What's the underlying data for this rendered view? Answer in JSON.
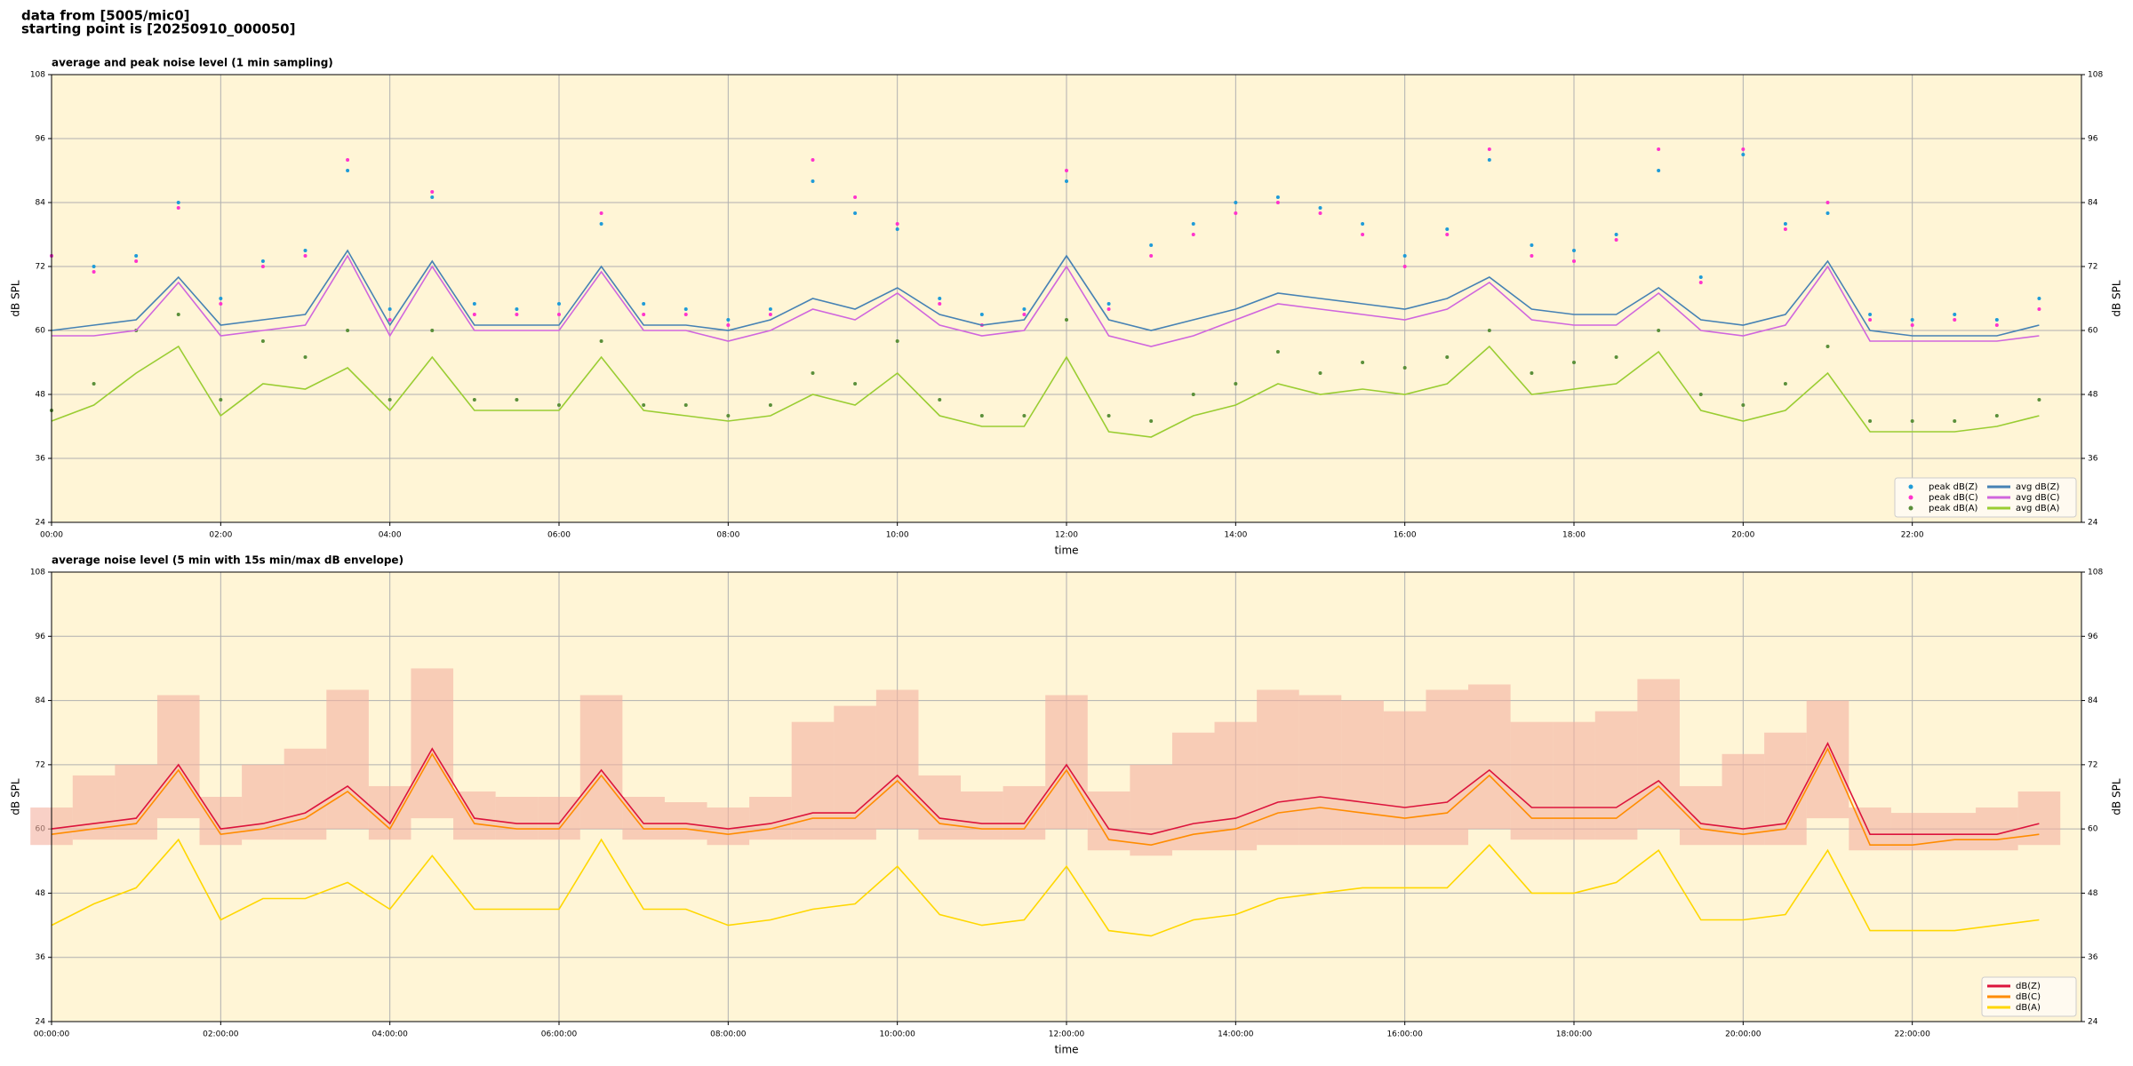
{
  "header": {
    "line1": "data from [5005/mic0]",
    "line2": "starting point is [20250910_000050]"
  },
  "chart_data": [
    {
      "type": "line",
      "title": "average and peak noise level (1 min sampling)",
      "xlabel": "time",
      "ylabel": "dB SPL",
      "x": [
        0,
        0.5,
        1,
        1.5,
        2,
        2.5,
        3,
        3.5,
        4,
        4.5,
        5,
        5.5,
        6,
        6.5,
        7,
        7.5,
        8,
        8.5,
        9,
        9.5,
        10,
        10.5,
        11,
        11.5,
        12,
        12.5,
        13,
        13.5,
        14,
        14.5,
        15,
        15.5,
        16,
        16.5,
        17,
        17.5,
        18,
        18.5,
        19,
        19.5,
        20,
        20.5,
        21,
        21.5,
        22,
        22.5,
        23,
        23.5
      ],
      "xlim": [
        0,
        24
      ],
      "xticks": [
        {
          "value": 0,
          "label": "00:00"
        },
        {
          "value": 2,
          "label": "02:00"
        },
        {
          "value": 4,
          "label": "04:00"
        },
        {
          "value": 6,
          "label": "06:00"
        },
        {
          "value": 8,
          "label": "08:00"
        },
        {
          "value": 10,
          "label": "10:00"
        },
        {
          "value": 12,
          "label": "12:00"
        },
        {
          "value": 14,
          "label": "14:00"
        },
        {
          "value": 16,
          "label": "16:00"
        },
        {
          "value": 18,
          "label": "18:00"
        },
        {
          "value": 20,
          "label": "20:00"
        },
        {
          "value": 22,
          "label": "22:00"
        }
      ],
      "ylim": [
        24,
        108
      ],
      "yticks": [
        24,
        36,
        48,
        60,
        72,
        84,
        96,
        108
      ],
      "grid": true,
      "legend": "lower right",
      "legend_columns": 2,
      "series": [
        {
          "name": "peak dB(Z)",
          "style": "points",
          "color": "#1f9bd8",
          "values": [
            74,
            72,
            74,
            84,
            66,
            73,
            75,
            90,
            64,
            85,
            65,
            64,
            65,
            80,
            65,
            64,
            62,
            64,
            88,
            82,
            79,
            66,
            63,
            64,
            88,
            65,
            76,
            80,
            84,
            85,
            83,
            80,
            74,
            79,
            92,
            76,
            75,
            78,
            90,
            70,
            93,
            80,
            82,
            63,
            62,
            63,
            62,
            66
          ]
        },
        {
          "name": "peak dB(C)",
          "style": "points",
          "color": "#ff33cc",
          "values": [
            74,
            71,
            73,
            83,
            65,
            72,
            74,
            92,
            62,
            86,
            63,
            63,
            63,
            82,
            63,
            63,
            61,
            63,
            92,
            85,
            80,
            65,
            61,
            63,
            90,
            64,
            74,
            78,
            82,
            84,
            82,
            78,
            72,
            78,
            94,
            74,
            73,
            77,
            94,
            69,
            94,
            79,
            84,
            62,
            61,
            62,
            61,
            64
          ]
        },
        {
          "name": "peak dB(A)",
          "style": "points",
          "color": "#5a8f3a",
          "values": [
            45,
            50,
            60,
            63,
            47,
            58,
            55,
            60,
            47,
            60,
            47,
            47,
            46,
            58,
            46,
            46,
            44,
            46,
            52,
            50,
            58,
            47,
            44,
            44,
            62,
            44,
            43,
            48,
            50,
            56,
            52,
            54,
            53,
            55,
            60,
            52,
            54,
            55,
            60,
            48,
            46,
            50,
            57,
            43,
            43,
            43,
            44,
            47
          ]
        },
        {
          "name": "avg dB(Z)",
          "style": "line",
          "color": "#4682b4",
          "values": [
            60,
            61,
            62,
            70,
            61,
            62,
            63,
            75,
            61,
            73,
            61,
            61,
            61,
            72,
            61,
            61,
            60,
            62,
            66,
            64,
            68,
            63,
            61,
            62,
            74,
            62,
            60,
            62,
            64,
            67,
            66,
            65,
            64,
            66,
            70,
            64,
            63,
            63,
            68,
            62,
            61,
            63,
            73,
            60,
            59,
            59,
            59,
            61
          ]
        },
        {
          "name": "avg dB(C)",
          "style": "line",
          "color": "#d066dd",
          "values": [
            59,
            59,
            60,
            69,
            59,
            60,
            61,
            74,
            59,
            72,
            60,
            60,
            60,
            71,
            60,
            60,
            58,
            60,
            64,
            62,
            67,
            61,
            59,
            60,
            72,
            59,
            57,
            59,
            62,
            65,
            64,
            63,
            62,
            64,
            69,
            62,
            61,
            61,
            67,
            60,
            59,
            61,
            72,
            58,
            58,
            58,
            58,
            59
          ]
        },
        {
          "name": "avg dB(A)",
          "style": "line",
          "color": "#9acd32",
          "values": [
            43,
            46,
            52,
            57,
            44,
            50,
            49,
            53,
            45,
            55,
            45,
            45,
            45,
            55,
            45,
            44,
            43,
            44,
            48,
            46,
            52,
            44,
            42,
            42,
            55,
            41,
            40,
            44,
            46,
            50,
            48,
            49,
            48,
            50,
            57,
            48,
            49,
            50,
            56,
            45,
            43,
            45,
            52,
            41,
            41,
            41,
            42,
            44
          ]
        }
      ]
    },
    {
      "type": "line",
      "title": "average noise level (5 min with 15s min/max dB envelope)",
      "xlabel": "time",
      "ylabel": "dB SPL",
      "x": [
        0,
        0.5,
        1,
        1.5,
        2,
        2.5,
        3,
        3.5,
        4,
        4.5,
        5,
        5.5,
        6,
        6.5,
        7,
        7.5,
        8,
        8.5,
        9,
        9.5,
        10,
        10.5,
        11,
        11.5,
        12,
        12.5,
        13,
        13.5,
        14,
        14.5,
        15,
        15.5,
        16,
        16.5,
        17,
        17.5,
        18,
        18.5,
        19,
        19.5,
        20,
        20.5,
        21,
        21.5,
        22,
        22.5,
        23,
        23.5
      ],
      "xlim": [
        0,
        24
      ],
      "xticks": [
        {
          "value": 0,
          "label": "00:00:00"
        },
        {
          "value": 2,
          "label": "02:00:00"
        },
        {
          "value": 4,
          "label": "04:00:00"
        },
        {
          "value": 6,
          "label": "06:00:00"
        },
        {
          "value": 8,
          "label": "08:00:00"
        },
        {
          "value": 10,
          "label": "10:00:00"
        },
        {
          "value": 12,
          "label": "12:00:00"
        },
        {
          "value": 14,
          "label": "14:00:00"
        },
        {
          "value": 16,
          "label": "16:00:00"
        },
        {
          "value": 18,
          "label": "18:00:00"
        },
        {
          "value": 20,
          "label": "20:00:00"
        },
        {
          "value": 22,
          "label": "22:00:00"
        }
      ],
      "ylim": [
        24,
        108
      ],
      "yticks": [
        24,
        36,
        48,
        60,
        72,
        84,
        96,
        108
      ],
      "grid": true,
      "legend": "lower right",
      "legend_columns": 1,
      "envelope": {
        "color": "#f4b0a0",
        "min": [
          57,
          58,
          58,
          62,
          57,
          58,
          58,
          60,
          58,
          62,
          58,
          58,
          58,
          60,
          58,
          58,
          57,
          58,
          58,
          58,
          60,
          58,
          58,
          58,
          60,
          56,
          55,
          56,
          56,
          57,
          57,
          57,
          57,
          57,
          60,
          58,
          58,
          58,
          60,
          57,
          57,
          57,
          62,
          56,
          56,
          56,
          56,
          57
        ],
        "max": [
          64,
          70,
          72,
          85,
          66,
          72,
          75,
          86,
          68,
          90,
          67,
          66,
          66,
          85,
          66,
          65,
          64,
          66,
          80,
          83,
          86,
          70,
          67,
          68,
          85,
          67,
          72,
          78,
          80,
          86,
          85,
          84,
          82,
          86,
          87,
          80,
          80,
          82,
          88,
          68,
          74,
          78,
          84,
          64,
          63,
          63,
          64,
          67
        ]
      },
      "series": [
        {
          "name": "dB(Z)",
          "style": "line",
          "color": "#dc143c",
          "values": [
            60,
            61,
            62,
            72,
            60,
            61,
            63,
            68,
            61,
            75,
            62,
            61,
            61,
            71,
            61,
            61,
            60,
            61,
            63,
            63,
            70,
            62,
            61,
            61,
            72,
            60,
            59,
            61,
            62,
            65,
            66,
            65,
            64,
            65,
            71,
            64,
            64,
            64,
            69,
            61,
            60,
            61,
            76,
            59,
            59,
            59,
            59,
            61
          ]
        },
        {
          "name": "dB(C)",
          "style": "line",
          "color": "#ff8c00",
          "values": [
            59,
            60,
            61,
            71,
            59,
            60,
            62,
            67,
            60,
            74,
            61,
            60,
            60,
            70,
            60,
            60,
            59,
            60,
            62,
            62,
            69,
            61,
            60,
            60,
            71,
            58,
            57,
            59,
            60,
            63,
            64,
            63,
            62,
            63,
            70,
            62,
            62,
            62,
            68,
            60,
            59,
            60,
            75,
            57,
            57,
            58,
            58,
            59
          ]
        },
        {
          "name": "dB(A)",
          "style": "line",
          "color": "#ffd700",
          "values": [
            42,
            46,
            49,
            58,
            43,
            47,
            47,
            50,
            45,
            55,
            45,
            45,
            45,
            58,
            45,
            45,
            42,
            43,
            45,
            46,
            53,
            44,
            42,
            43,
            53,
            41,
            40,
            43,
            44,
            47,
            48,
            49,
            49,
            49,
            57,
            48,
            48,
            50,
            56,
            43,
            43,
            44,
            56,
            41,
            41,
            41,
            42,
            43
          ]
        }
      ]
    }
  ]
}
